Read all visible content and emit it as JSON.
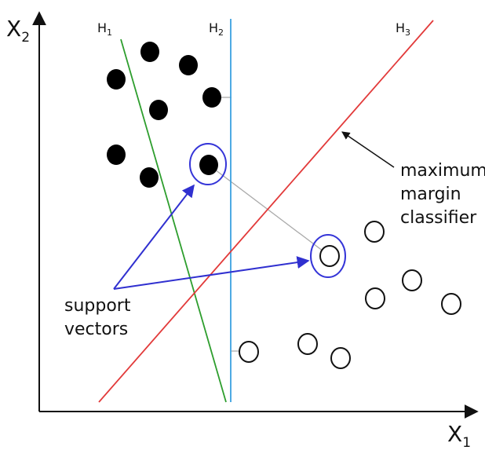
{
  "axes": {
    "x_label": "X",
    "x_sub": "1",
    "y_label": "X",
    "y_sub": "2"
  },
  "hyperplanes": [
    {
      "name": "H",
      "sub": "1",
      "color": "#2e9e2e"
    },
    {
      "name": "H",
      "sub": "2",
      "color": "#3aa0e0"
    },
    {
      "name": "H",
      "sub": "3",
      "color": "#e23a3a"
    }
  ],
  "annotations": {
    "max_margin_line1": "maximum",
    "max_margin_line2": "margin",
    "max_margin_line3": "classifier",
    "support_line1": "support",
    "support_line2": "vectors"
  },
  "colors": {
    "support_ring": "#3535d8",
    "support_arrow": "#3030d0",
    "margin_line": "#aaaaaa",
    "axis": "#111111"
  }
}
